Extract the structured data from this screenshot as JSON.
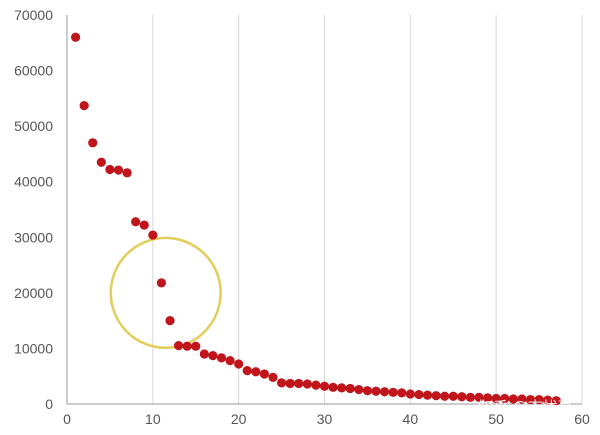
{
  "chart_data": {
    "type": "scatter",
    "title": "",
    "xlabel": "",
    "ylabel": "",
    "xlim": [
      0,
      60
    ],
    "ylim": [
      0,
      70000
    ],
    "x_ticks": [
      0,
      10,
      20,
      30,
      40,
      50,
      60
    ],
    "y_ticks": [
      0,
      10000,
      20000,
      30000,
      40000,
      50000,
      60000,
      70000
    ],
    "x_tick_labels": [
      "0",
      "10",
      "20",
      "30",
      "40",
      "50",
      "60"
    ],
    "y_tick_labels": [
      "0",
      "10000",
      "20000",
      "30000",
      "40000",
      "50000",
      "60000",
      "70000"
    ],
    "grid": "vertical",
    "series": [
      {
        "color": "#c0151b",
        "points": [
          [
            1,
            66000
          ],
          [
            2,
            53700
          ],
          [
            3,
            47000
          ],
          [
            4,
            43500
          ],
          [
            5,
            42200
          ],
          [
            6,
            42100
          ],
          [
            7,
            41600
          ],
          [
            8,
            32800
          ],
          [
            9,
            32200
          ],
          [
            10,
            30400
          ],
          [
            11,
            21800
          ],
          [
            12,
            15000
          ],
          [
            13,
            10500
          ],
          [
            14,
            10400
          ],
          [
            15,
            10400
          ],
          [
            16,
            9000
          ],
          [
            17,
            8700
          ],
          [
            18,
            8300
          ],
          [
            19,
            7800
          ],
          [
            20,
            7200
          ],
          [
            21,
            6000
          ],
          [
            22,
            5800
          ],
          [
            23,
            5400
          ],
          [
            24,
            4800
          ],
          [
            25,
            3800
          ],
          [
            26,
            3700
          ],
          [
            27,
            3700
          ],
          [
            28,
            3600
          ],
          [
            29,
            3400
          ],
          [
            30,
            3200
          ],
          [
            31,
            3000
          ],
          [
            32,
            2900
          ],
          [
            33,
            2800
          ],
          [
            34,
            2600
          ],
          [
            35,
            2400
          ],
          [
            36,
            2300
          ],
          [
            37,
            2200
          ],
          [
            38,
            2100
          ],
          [
            39,
            2000
          ],
          [
            40,
            1800
          ],
          [
            41,
            1700
          ],
          [
            42,
            1600
          ],
          [
            43,
            1500
          ],
          [
            44,
            1400
          ],
          [
            45,
            1400
          ],
          [
            46,
            1300
          ],
          [
            47,
            1200
          ],
          [
            48,
            1200
          ],
          [
            49,
            1100
          ],
          [
            50,
            1000
          ],
          [
            51,
            1000
          ],
          [
            52,
            900
          ],
          [
            53,
            900
          ],
          [
            54,
            800
          ],
          [
            55,
            800
          ],
          [
            56,
            700
          ],
          [
            57,
            600
          ]
        ]
      }
    ],
    "annotation": {
      "shape": "circle",
      "color": "#e3cd5b",
      "center": [
        11.5,
        20000
      ],
      "radius_x_units": 6.4
    }
  },
  "watermark": "知乎 @志忧草"
}
